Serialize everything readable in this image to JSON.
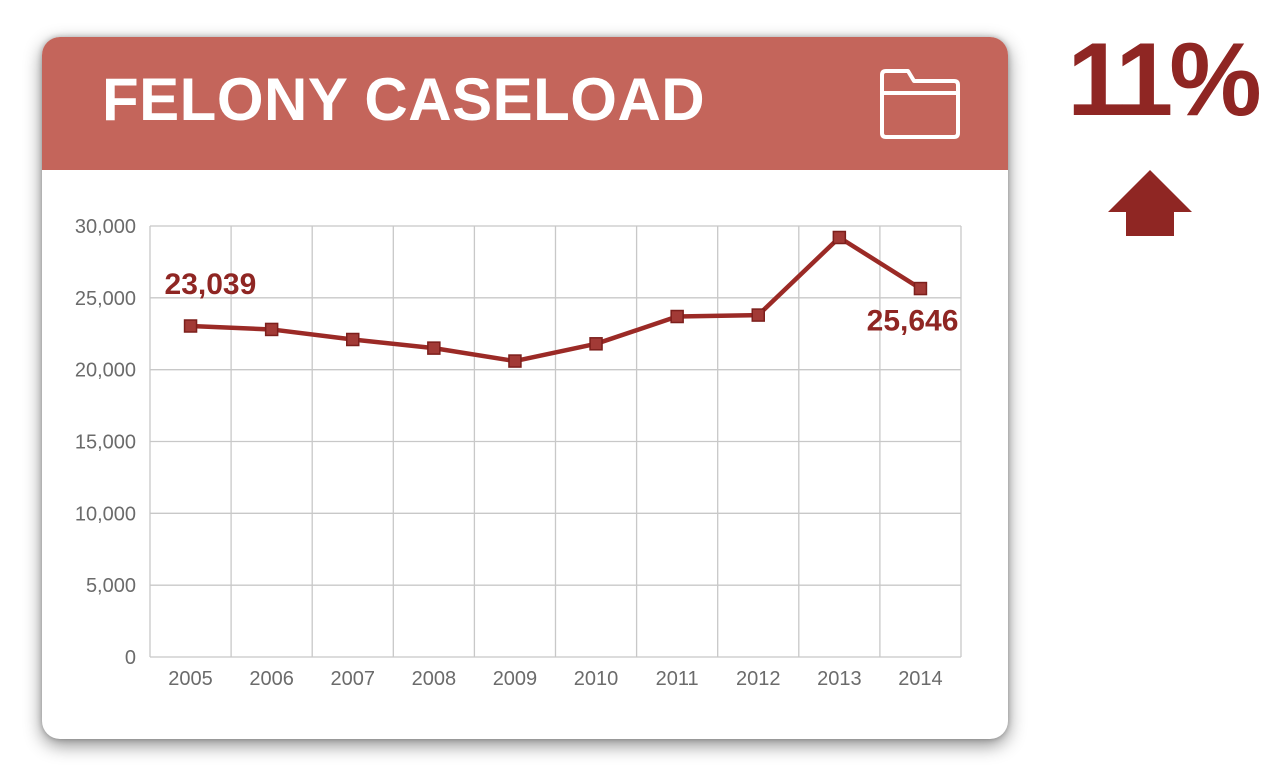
{
  "card": {
    "title": "FELONY CASELOAD",
    "folder_icon": "folder-icon",
    "header_color": "#c4655b"
  },
  "change": {
    "value": "11%",
    "direction_icon": "arrow-up-icon",
    "color": "#8f2623"
  },
  "chart_data": {
    "type": "line",
    "title": "",
    "xlabel": "",
    "ylabel": "",
    "x": [
      "2005",
      "2006",
      "2007",
      "2008",
      "2009",
      "2010",
      "2011",
      "2012",
      "2013",
      "2014"
    ],
    "y_tick_labels": [
      "0",
      "5,000",
      "10,000",
      "15,000",
      "20,000",
      "25,000",
      "30,000"
    ],
    "ylim": [
      0,
      30000
    ],
    "grid": true,
    "series": [
      {
        "color": "#9b2a26",
        "values": [
          23039,
          22800,
          22100,
          21500,
          20600,
          21800,
          23700,
          23800,
          29200,
          25646
        ]
      }
    ],
    "annotations": [
      {
        "text": "23,039",
        "x": "2005",
        "y": 23039
      },
      {
        "text": "25,646",
        "x": "2014",
        "y": 25646
      }
    ]
  }
}
